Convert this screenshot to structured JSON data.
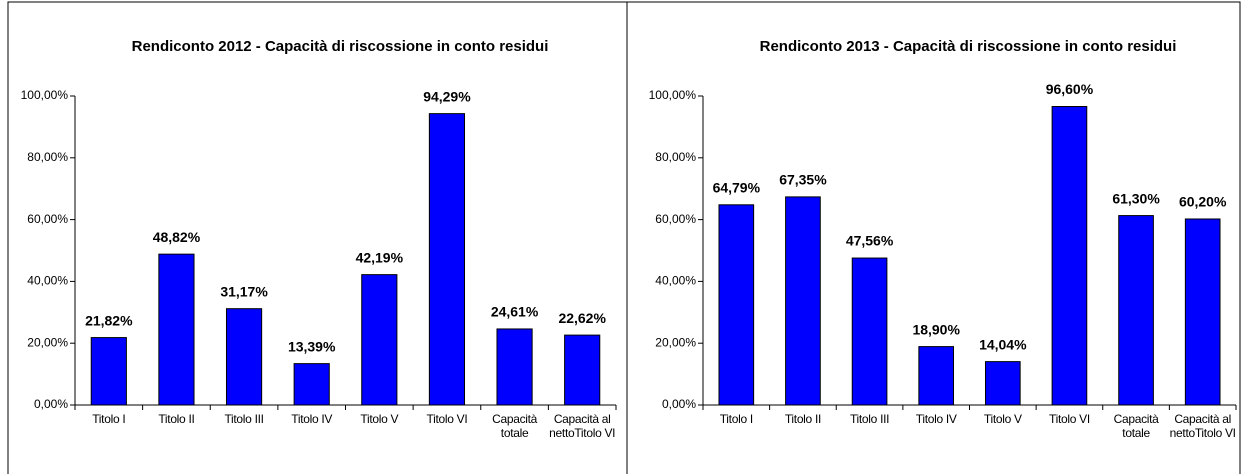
{
  "chart_data": [
    {
      "type": "bar",
      "title": "Rendiconto 2012 - Capacità di riscossione in conto residui",
      "categories": [
        "Titolo I",
        "Titolo II",
        "Titolo III",
        "Titolo IV",
        "Titolo V",
        "Titolo VI",
        "Capacità totale",
        "Capacità al nettoTitolo VI"
      ],
      "values": [
        21.82,
        48.82,
        31.17,
        13.39,
        42.19,
        94.29,
        24.61,
        22.62
      ],
      "value_labels": [
        "21,82%",
        "48,82%",
        "31,17%",
        "13,39%",
        "42,19%",
        "94,29%",
        "24,61%",
        "22,62%"
      ],
      "color": "#0000ff",
      "ylim": [
        0,
        100
      ],
      "yticks": [
        {
          "value": 0,
          "label": "0,00%"
        },
        {
          "value": 20,
          "label": "20,00%"
        },
        {
          "value": 40,
          "label": "40,00%"
        },
        {
          "value": 60,
          "label": "60,00%"
        },
        {
          "value": 80,
          "label": "80,00%"
        },
        {
          "value": 100,
          "label": "100,00%"
        }
      ]
    },
    {
      "type": "bar",
      "title": "Rendiconto 2013 - Capacità di riscossione in conto residui",
      "categories": [
        "Titolo I",
        "Titolo II",
        "Titolo III",
        "Titolo IV",
        "Titolo V",
        "Titolo VI",
        "Capacità totale",
        "Capacità al nettoTitolo VI"
      ],
      "values": [
        64.79,
        67.35,
        47.56,
        18.9,
        14.04,
        96.6,
        61.3,
        60.2
      ],
      "value_labels": [
        "64,79%",
        "67,35%",
        "47,56%",
        "18,90%",
        "14,04%",
        "96,60%",
        "61,30%",
        "60,20%"
      ],
      "color": "#0000ff",
      "ylim": [
        0,
        100
      ],
      "yticks": [
        {
          "value": 0,
          "label": "0,00%"
        },
        {
          "value": 20,
          "label": "20,00%"
        },
        {
          "value": 40,
          "label": "40,00%"
        },
        {
          "value": 60,
          "label": "60,00%"
        },
        {
          "value": 80,
          "label": "80,00%"
        },
        {
          "value": 100,
          "label": "100,00%"
        }
      ]
    }
  ]
}
